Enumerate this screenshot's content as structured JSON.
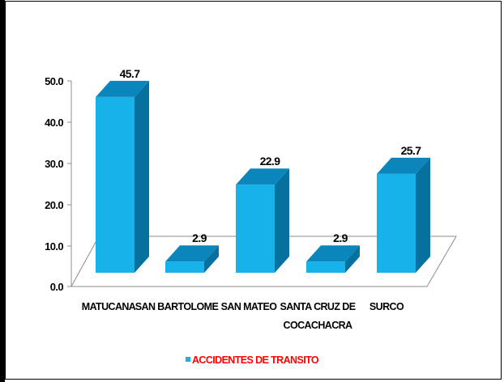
{
  "chart_data": {
    "type": "bar",
    "style": "3d",
    "categories": [
      "MATUCANA",
      "SAN BARTOLOME",
      "SAN MATEO",
      "SANTA CRUZ DE COCACHACRA",
      "SURCO"
    ],
    "category_lines": [
      [
        "MATUCANA"
      ],
      [
        "SAN BARTOLOME"
      ],
      [
        "SAN MATEO"
      ],
      [
        "SANTA CRUZ DE",
        "COCACHACRA"
      ],
      [
        "SURCO"
      ]
    ],
    "series": [
      {
        "name": "ACCIDENTES DE TRANSITO",
        "values": [
          45.7,
          2.9,
          22.9,
          2.9,
          25.7
        ]
      }
    ],
    "data_labels": [
      "45.7",
      "2.9",
      "22.9",
      "2.9",
      "25.7"
    ],
    "y_ticks": [
      "0.0",
      "10.0",
      "20.0",
      "30.0",
      "40.0",
      "50.0"
    ],
    "ylim": [
      0,
      50
    ],
    "grid": false,
    "legend_position": "bottom",
    "colors": {
      "bar_front": "#17b2ea",
      "bar_top": "#0a86bd",
      "bar_side": "#06719f",
      "legend_swatch": "#17b2ea",
      "legend_text": "#ff0000"
    }
  }
}
